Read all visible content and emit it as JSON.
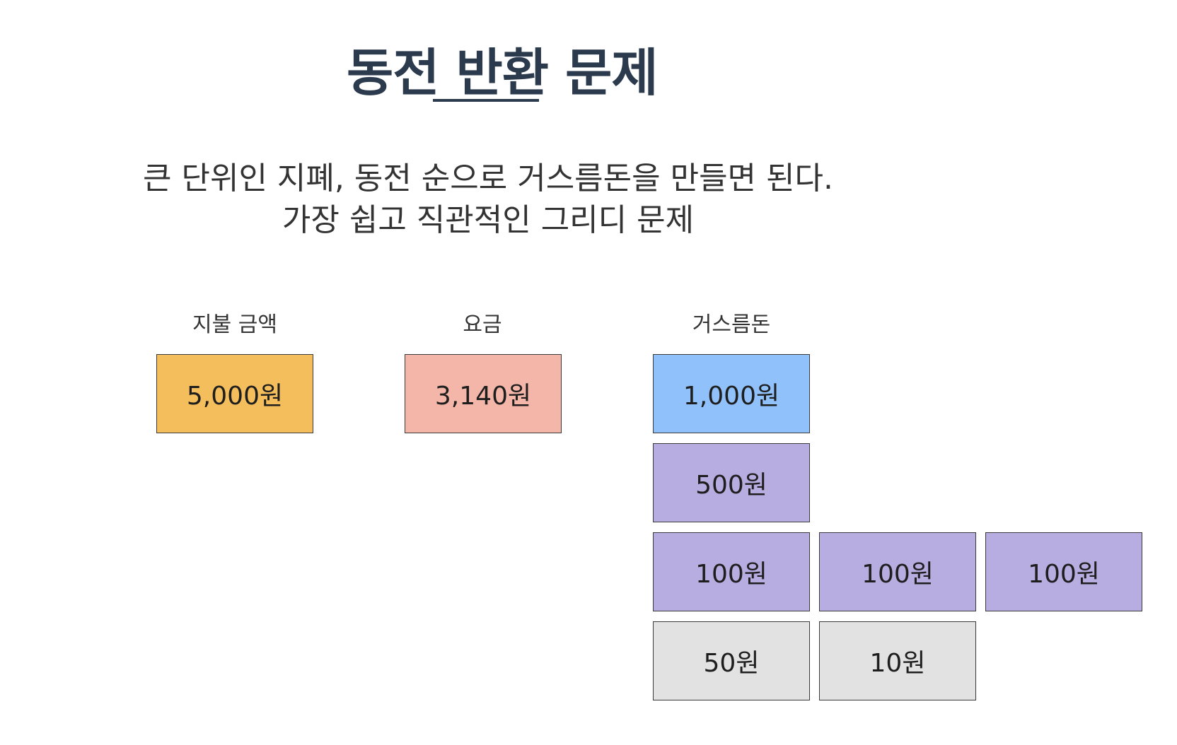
{
  "title": "동전 반환 문제",
  "description": [
    "큰 단위인 지폐, 동전 순으로 거스름돈을 만들면 된다.",
    "가장 쉽고 직관적인 그리디 문제"
  ],
  "columns": {
    "payment": {
      "label": "지불 금액",
      "value": "5,000원",
      "color": "#F4BE5C"
    },
    "fee": {
      "label": "요금",
      "value": "3,140원",
      "color": "#F3B6A8"
    },
    "change": {
      "label": "거스름돈",
      "items": [
        {
          "value": "1,000원",
          "color": "#90C1FA"
        },
        {
          "value": "500원",
          "color": "#B8ADE0"
        },
        {
          "value": "100원",
          "color": "#B8ADE0"
        },
        {
          "value": "100원",
          "color": "#B8ADE0"
        },
        {
          "value": "100원",
          "color": "#B8ADE0"
        },
        {
          "value": "50원",
          "color": "#E2E2E2"
        },
        {
          "value": "10원",
          "color": "#E2E2E2"
        }
      ]
    }
  }
}
